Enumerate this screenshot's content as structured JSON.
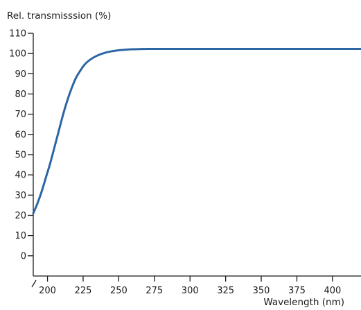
{
  "chart_data": {
    "type": "line",
    "title": "",
    "ylabel": "Rel. transmisssion (%)",
    "xlabel": "Wavelength (nm)",
    "xlim": [
      190,
      420
    ],
    "ylim": [
      -10,
      110
    ],
    "x_ticks": [
      200,
      225,
      250,
      275,
      300,
      325,
      350,
      375,
      400
    ],
    "y_ticks": [
      0,
      10,
      20,
      30,
      40,
      50,
      60,
      70,
      80,
      90,
      100,
      110
    ],
    "grid": false,
    "legend": "none",
    "color": "#2b65a3",
    "series": [
      {
        "x": [
          190,
          193,
          196,
          199,
          202,
          205,
          208,
          211,
          214,
          217,
          220,
          223,
          226,
          230,
          235,
          240,
          245,
          250,
          255,
          260,
          265,
          270,
          275,
          280,
          300,
          325,
          350,
          375,
          400,
          420
        ],
        "values": [
          21,
          26,
          32,
          39,
          46,
          54,
          62,
          70,
          77,
          83,
          88,
          91.5,
          94.5,
          97,
          99,
          100.3,
          101.1,
          101.6,
          101.9,
          102.1,
          102.2,
          102.3,
          102.3,
          102.3,
          102.3,
          102.3,
          102.3,
          102.3,
          102.3,
          102.3
        ]
      }
    ]
  }
}
